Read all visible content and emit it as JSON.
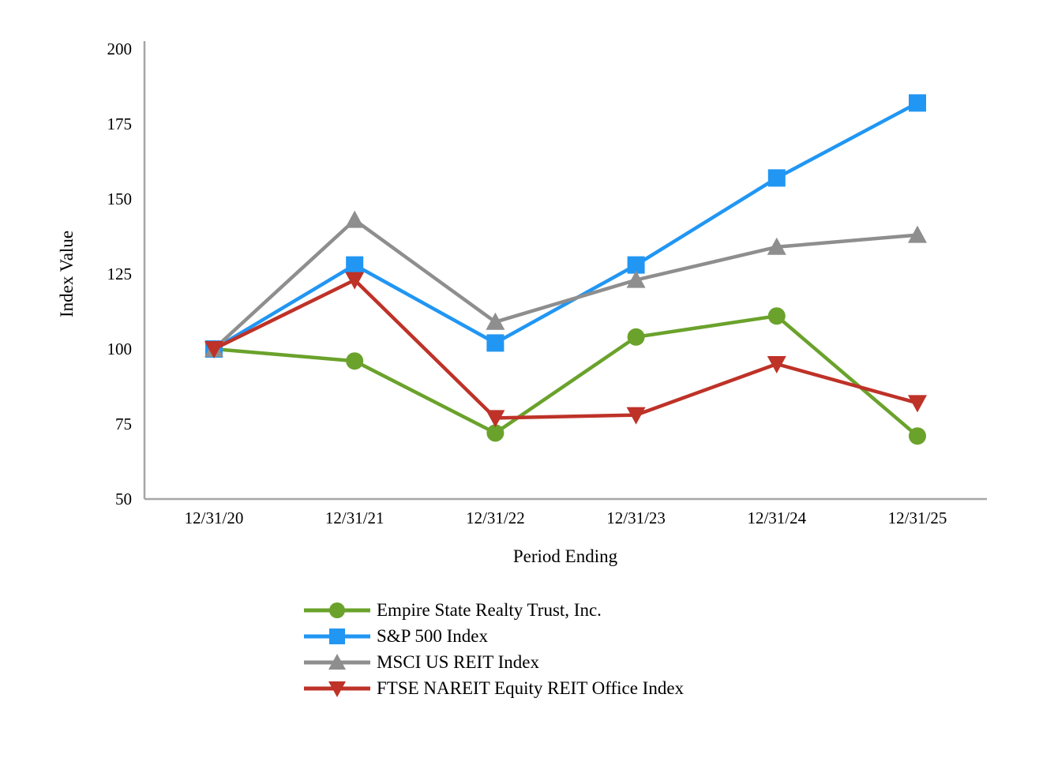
{
  "chart_data": {
    "type": "line",
    "title": "",
    "xlabel": "Period Ending",
    "ylabel": "Index Value",
    "x_categories": [
      "12/31/20",
      "12/31/21",
      "12/31/22",
      "12/31/23",
      "12/31/24",
      "12/31/25"
    ],
    "y_ticks": [
      50,
      75,
      100,
      125,
      150,
      175,
      200
    ],
    "ylim": [
      50,
      200
    ],
    "grid": false,
    "legend_position": "bottom-left",
    "axis_color": "#a6a6a6",
    "text_color": "#000000",
    "series": [
      {
        "name": "Empire State Realty Trust, Inc.",
        "color": "#6aa22b",
        "marker": "circle",
        "values": [
          100,
          96,
          72,
          104,
          111,
          71
        ]
      },
      {
        "name": "S&P 500 Index",
        "color": "#2196f3",
        "marker": "square",
        "values": [
          100,
          128,
          102,
          128,
          157,
          182
        ]
      },
      {
        "name": "MSCI US REIT Index",
        "color": "#8e8e8e",
        "marker": "triangle-up",
        "values": [
          100,
          143,
          109,
          123,
          134,
          138
        ]
      },
      {
        "name": "FTSE NAREIT Equity REIT Office Index",
        "color": "#be3228",
        "marker": "triangle-down",
        "values": [
          100,
          123,
          77,
          78,
          95,
          82
        ]
      }
    ]
  }
}
